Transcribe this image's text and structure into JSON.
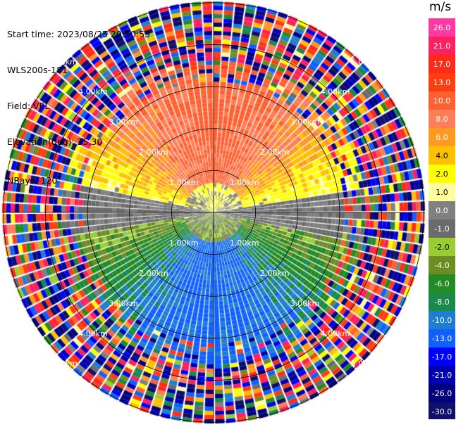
{
  "header": {
    "start_time": "Start time: 2023/08/25 20:50:53",
    "instrument": "WLS200s-181",
    "field": "Field: VEL",
    "elevation": "Elevation(deg): 35.30",
    "nrays": "NRays: 120"
  },
  "colorbar": {
    "units": "m/s",
    "ticks": [
      "26.0",
      "21.0",
      "17.0",
      "13.0",
      "10.0",
      "8.0",
      "6.0",
      "4.0",
      "2.0",
      "1.0",
      "0.0",
      "-1.0",
      "-2.0",
      "-4.0",
      "-6.0",
      "-8.0",
      "-10.0",
      "-13.0",
      "-17.0",
      "-21.0",
      "-26.0",
      "-30.0"
    ],
    "colors": [
      "#ff3aa3",
      "#ff2060",
      "#ff2a1a",
      "#ff3d10",
      "#ff6030",
      "#ff7e58",
      "#ff9a20",
      "#ffc000",
      "#ffff00",
      "#ffff9e",
      "#808080",
      "#6b6b6b",
      "#9acd32",
      "#6b8e23",
      "#228b22",
      "#1a8a4a",
      "#1e7fd0",
      "#1060ff",
      "#0000ff",
      "#0000b0",
      "#000080",
      "#10106a"
    ]
  },
  "range_labels": [
    "1.00km",
    "2.00km",
    "3.00km",
    "4.00km",
    "5.00km"
  ],
  "chart_data": {
    "type": "heatmap",
    "projection": "polar PPI",
    "field": "VEL",
    "units": "m/s",
    "nrays": 120,
    "range_rings_km": [
      1.0,
      2.0,
      3.0,
      4.0,
      5.0
    ],
    "max_range_km": 7.0,
    "color_levels": [
      -30.0,
      -26.0,
      -21.0,
      -17.0,
      -13.0,
      -10.0,
      -8.0,
      -6.0,
      -4.0,
      -2.0,
      -1.0,
      0.0,
      1.0,
      2.0,
      4.0,
      6.0,
      8.0,
      10.0,
      13.0,
      17.0,
      21.0,
      26.0
    ],
    "pattern": {
      "north_sector_ms": 12,
      "south_sector_ms": -9,
      "east_west_ms": 0,
      "noisy_beyond_km": 5.0
    }
  }
}
